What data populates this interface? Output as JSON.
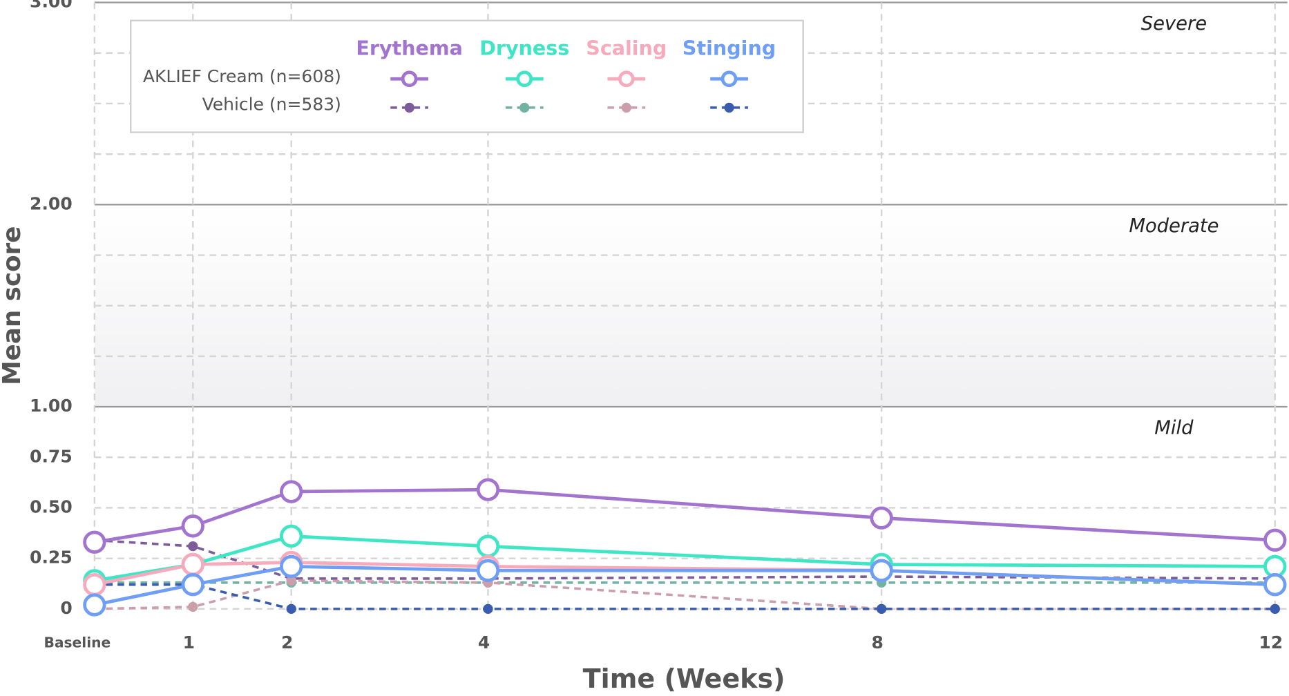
{
  "chart_data": {
    "type": "line",
    "y_axis_label": "Mean score",
    "x_axis_label": "Time (Weeks)",
    "xlim": [
      0,
      12
    ],
    "xticks": [
      {
        "value": 0,
        "label": "Baseline"
      },
      1,
      2,
      4,
      8,
      12
    ],
    "x": [
      0,
      1,
      2,
      4,
      8,
      12
    ],
    "ylim": [
      0,
      3
    ],
    "yticks": [
      0,
      0.25,
      {
        "value": 0.5,
        "label": "0.50"
      },
      0.75,
      {
        "value": 1,
        "label": "1.00"
      },
      {
        "value": 2,
        "label": "2.00"
      },
      {
        "value": 3,
        "label": "3.00"
      }
    ],
    "minor_gridlines": [
      1.25,
      1.5,
      1.75,
      2.25,
      2.5,
      2.75
    ],
    "zone_labels": [
      "Mild",
      "Moderate",
      "Severe"
    ],
    "grid": true,
    "legend_position": "upper left",
    "treatment_label": "AKLIEF Cream (n=608)",
    "vehicle_label": "Vehicle (n=583)",
    "series": [
      {
        "name": "Erythema",
        "color": "#a274cf",
        "values": [
          0.33,
          0.41,
          0.58,
          0.59,
          0.45,
          0.34
        ],
        "vehicle": {
          "color": "#7d5c9c",
          "values": [
            0.34,
            0.31,
            0.15,
            0.15,
            0.16,
            0.15
          ]
        }
      },
      {
        "name": "Dryness",
        "color": "#3fe6c6",
        "values": [
          0.14,
          0.22,
          0.36,
          0.31,
          0.22,
          0.21
        ],
        "vehicle": {
          "color": "#72b2a2",
          "values": [
            0.13,
            0.13,
            0.13,
            0.13,
            0.13,
            0.13
          ]
        }
      },
      {
        "name": "Scaling",
        "color": "#f6aabb",
        "values": [
          0.12,
          0.22,
          0.23,
          0.21,
          0.19,
          0.12
        ],
        "vehicle": {
          "color": "#cc9eab",
          "values": [
            0,
            0.01,
            0.14,
            0.13,
            0,
            0
          ]
        }
      },
      {
        "name": "Stinging",
        "color": "#6f9ef5",
        "values": [
          0.02,
          0.12,
          0.21,
          0.19,
          0.19,
          0.12
        ],
        "vehicle": {
          "color": "#3a5cae",
          "values": [
            0.12,
            0.12,
            0,
            0,
            0,
            0
          ]
        }
      }
    ]
  }
}
